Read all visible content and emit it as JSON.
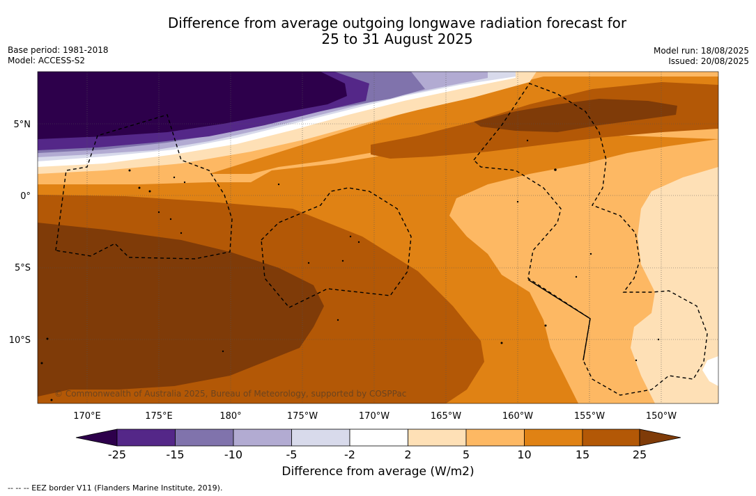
{
  "title_line1": "Difference from average outgoing longwave radiation forecast for",
  "title_line2": "25 to 31 August 2025",
  "base_period": "Base period: 1981-2018",
  "model": "Model: ACCESS-S2",
  "model_run": "Model run: 18/08/2025",
  "issued": "Issued: 20/08/2025",
  "copyright": "© Commonwealth of Australia 2025, Bureau of Meteorology, supported by COSPPac",
  "lat_labels": [
    "5°N",
    "0°",
    "5°S",
    "10°S"
  ],
  "lon_labels": [
    "170°E",
    "175°E",
    "180°",
    "175°W",
    "170°W",
    "165°W",
    "160°W",
    "155°W",
    "150°W"
  ],
  "colorbar": {
    "title": "Difference from average (W/m2)",
    "ticks": [
      "-25",
      "-15",
      "-10",
      "-5",
      "-2",
      "2",
      "5",
      "10",
      "15",
      "25"
    ],
    "colors": [
      "#2d004b",
      "#542788",
      "#8073ac",
      "#b2abd2",
      "#d8daeb",
      "#ffffff",
      "#fee0b6",
      "#fdb863",
      "#e08214",
      "#b35806",
      "#7f3b08"
    ]
  },
  "footnote": "-- -- -- EEZ border V11 (Flanders Marine Institute, 2019)."
}
